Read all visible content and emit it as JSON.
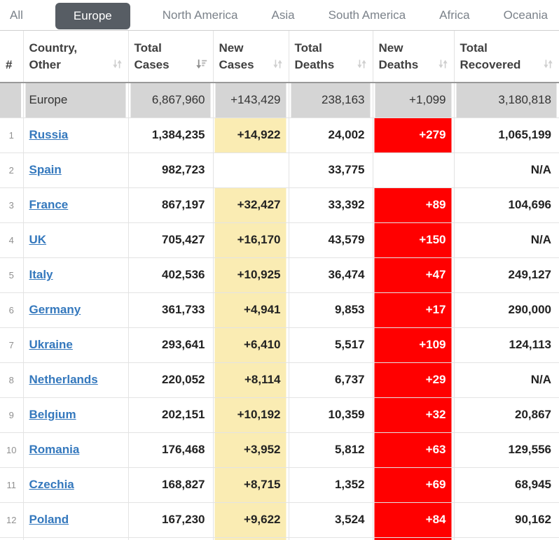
{
  "tabs": [
    {
      "label": "All",
      "active": false
    },
    {
      "label": "Europe",
      "active": true
    },
    {
      "label": "North America",
      "active": false
    },
    {
      "label": "Asia",
      "active": false
    },
    {
      "label": "South America",
      "active": false
    },
    {
      "label": "Africa",
      "active": false
    },
    {
      "label": "Oceania",
      "active": false
    }
  ],
  "table": {
    "columns": [
      {
        "key": "rank",
        "label": "#",
        "sort": "none"
      },
      {
        "key": "country",
        "label": "Country, Other",
        "sort": "inactive"
      },
      {
        "key": "total_cases",
        "label": "Total Cases",
        "sort": "desc"
      },
      {
        "key": "new_cases",
        "label": "New Cases",
        "sort": "inactive"
      },
      {
        "key": "total_deaths",
        "label": "Total Deaths",
        "sort": "inactive"
      },
      {
        "key": "new_deaths",
        "label": "New Deaths",
        "sort": "inactive"
      },
      {
        "key": "total_recovered",
        "label": "Total Recovered",
        "sort": "inactive"
      }
    ],
    "total_row": {
      "region": "Europe",
      "total_cases": "6,867,960",
      "new_cases": "+143,429",
      "total_deaths": "238,163",
      "new_deaths": "+1,099",
      "total_recovered": "3,180,818"
    },
    "rows": [
      {
        "rank": "1",
        "country": "Russia",
        "total_cases": "1,384,235",
        "new_cases": "+14,922",
        "total_deaths": "24,002",
        "new_deaths": "+279",
        "total_recovered": "1,065,199"
      },
      {
        "rank": "2",
        "country": "Spain",
        "total_cases": "982,723",
        "new_cases": "",
        "total_deaths": "33,775",
        "new_deaths": "",
        "total_recovered": "N/A"
      },
      {
        "rank": "3",
        "country": "France",
        "total_cases": "867,197",
        "new_cases": "+32,427",
        "total_deaths": "33,392",
        "new_deaths": "+89",
        "total_recovered": "104,696"
      },
      {
        "rank": "4",
        "country": "UK",
        "total_cases": "705,427",
        "new_cases": "+16,170",
        "total_deaths": "43,579",
        "new_deaths": "+150",
        "total_recovered": "N/A"
      },
      {
        "rank": "5",
        "country": "Italy",
        "total_cases": "402,536",
        "new_cases": "+10,925",
        "total_deaths": "36,474",
        "new_deaths": "+47",
        "total_recovered": "249,127"
      },
      {
        "rank": "6",
        "country": "Germany",
        "total_cases": "361,733",
        "new_cases": "+4,941",
        "total_deaths": "9,853",
        "new_deaths": "+17",
        "total_recovered": "290,000"
      },
      {
        "rank": "7",
        "country": "Ukraine",
        "total_cases": "293,641",
        "new_cases": "+6,410",
        "total_deaths": "5,517",
        "new_deaths": "+109",
        "total_recovered": "124,113"
      },
      {
        "rank": "8",
        "country": "Netherlands",
        "total_cases": "220,052",
        "new_cases": "+8,114",
        "total_deaths": "6,737",
        "new_deaths": "+29",
        "total_recovered": "N/A"
      },
      {
        "rank": "9",
        "country": "Belgium",
        "total_cases": "202,151",
        "new_cases": "+10,192",
        "total_deaths": "10,359",
        "new_deaths": "+32",
        "total_recovered": "20,867"
      },
      {
        "rank": "10",
        "country": "Romania",
        "total_cases": "176,468",
        "new_cases": "+3,952",
        "total_deaths": "5,812",
        "new_deaths": "+63",
        "total_recovered": "129,556"
      },
      {
        "rank": "11",
        "country": "Czechia",
        "total_cases": "168,827",
        "new_cases": "+8,715",
        "total_deaths": "1,352",
        "new_deaths": "+69",
        "total_recovered": "68,945"
      },
      {
        "rank": "12",
        "country": "Poland",
        "total_cases": "167,230",
        "new_cases": "+9,622",
        "total_deaths": "3,524",
        "new_deaths": "+84",
        "total_recovered": "90,162"
      }
    ],
    "clipped_next_row": true
  },
  "colors": {
    "tab_active_bg": "#575d64",
    "link_blue": "#3478bd",
    "new_cases_bg": "#faecb3",
    "new_deaths_bg": "#ff0000",
    "total_row_bg": "#d5d5d5"
  }
}
